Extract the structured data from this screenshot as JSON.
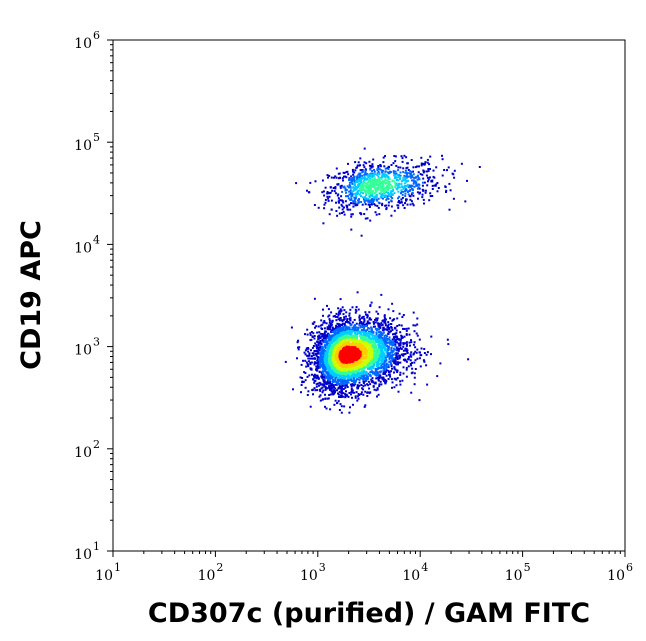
{
  "chart_data": {
    "type": "scatter",
    "subtype": "flow-cytometry-density-dot-plot",
    "xlabel": "CD307c (purified) / GAM FITC",
    "ylabel": "CD19 APC",
    "x_scale": "log",
    "y_scale": "log",
    "xlim": [
      10,
      1000000
    ],
    "ylim": [
      10,
      1000000
    ],
    "x_ticks": [
      {
        "base": "10",
        "exp": "1"
      },
      {
        "base": "10",
        "exp": "2"
      },
      {
        "base": "10",
        "exp": "3"
      },
      {
        "base": "10",
        "exp": "4"
      },
      {
        "base": "10",
        "exp": "5"
      },
      {
        "base": "10",
        "exp": "6"
      }
    ],
    "y_ticks": [
      {
        "base": "10",
        "exp": "1"
      },
      {
        "base": "10",
        "exp": "2"
      },
      {
        "base": "10",
        "exp": "3"
      },
      {
        "base": "10",
        "exp": "4"
      },
      {
        "base": "10",
        "exp": "5"
      },
      {
        "base": "10",
        "exp": "6"
      }
    ],
    "grid": false,
    "legend": "none",
    "density_colormap": [
      "#0000cc",
      "#0066ff",
      "#00ccff",
      "#33ff99",
      "#ccff00",
      "#ffcc00",
      "#ff0000"
    ],
    "populations": [
      {
        "center_x": 3500,
        "center_y": 38000,
        "count": 1000,
        "peak_density": "cyan"
      },
      {
        "center_x": 1900,
        "center_y": 850,
        "count": 4200,
        "peak_density": "red"
      }
    ]
  }
}
